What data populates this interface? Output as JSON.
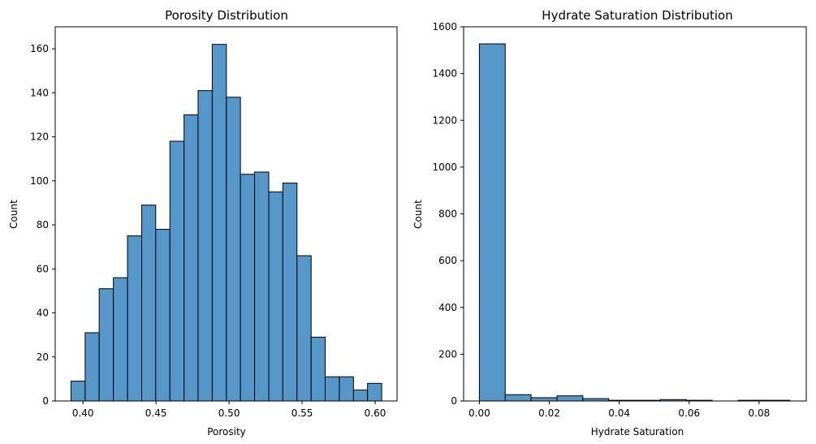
{
  "chart_data": [
    {
      "type": "bar",
      "title": "Porosity Distribution",
      "xlabel": "Porosity",
      "ylabel": "Count",
      "xlim": [
        0.381,
        0.615
      ],
      "ylim": [
        0,
        170
      ],
      "xticks": [
        0.4,
        0.45,
        0.5,
        0.55,
        0.6
      ],
      "xtick_labels": [
        "0.40",
        "0.45",
        "0.50",
        "0.55",
        "0.60"
      ],
      "yticks": [
        0,
        20,
        40,
        60,
        80,
        100,
        120,
        140,
        160
      ],
      "ytick_labels": [
        "0",
        "20",
        "40",
        "60",
        "80",
        "100",
        "120",
        "140",
        "160"
      ],
      "bin_edges": [
        0.3918,
        0.4015,
        0.4111,
        0.4208,
        0.4305,
        0.4402,
        0.4498,
        0.4595,
        0.4692,
        0.4788,
        0.4885,
        0.4982,
        0.5078,
        0.5175,
        0.5272,
        0.5368,
        0.5465,
        0.5562,
        0.5658,
        0.5755,
        0.5852,
        0.5948,
        0.6045
      ],
      "values": [
        9,
        31,
        51,
        56,
        75,
        89,
        78,
        118,
        130,
        141,
        162,
        138,
        103,
        104,
        95,
        99,
        66,
        29,
        11,
        11,
        5,
        8
      ],
      "bar_color": "#5497c8",
      "grid": false
    },
    {
      "type": "bar",
      "title": "Hydrate Saturation Distribution",
      "xlabel": "Hydrate Saturation",
      "ylabel": "Count",
      "xlim": [
        -0.0045,
        0.0935
      ],
      "ylim": [
        0,
        1600
      ],
      "xticks": [
        0.0,
        0.02,
        0.04,
        0.06,
        0.08
      ],
      "xtick_labels": [
        "0.00",
        "0.02",
        "0.04",
        "0.06",
        "0.08"
      ],
      "yticks": [
        0,
        200,
        400,
        600,
        800,
        1000,
        1200,
        1400,
        1600
      ],
      "ytick_labels": [
        "0",
        "200",
        "400",
        "600",
        "800",
        "1000",
        "1200",
        "1400",
        "1600"
      ],
      "bin_edges": [
        0.0,
        0.0074,
        0.0148,
        0.0222,
        0.0296,
        0.037,
        0.0444,
        0.0518,
        0.0592,
        0.0666,
        0.074,
        0.0814,
        0.0888
      ],
      "values": [
        1527,
        27,
        14,
        22,
        10,
        3,
        3,
        6,
        3,
        0,
        3,
        3
      ],
      "bar_color": "#5497c8",
      "grid": false
    }
  ]
}
